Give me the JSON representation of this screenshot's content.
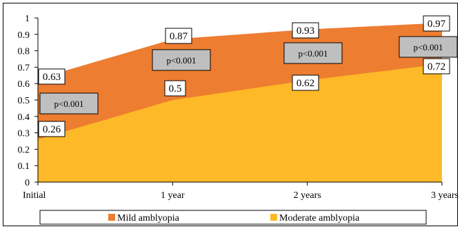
{
  "chart_data": {
    "type": "area",
    "categories": [
      "Initial",
      "1 year",
      "2 years",
      "3 years"
    ],
    "ylim": [
      0,
      1
    ],
    "yticks": [
      "0",
      "0.1",
      "0.2",
      "0.3",
      "0.4",
      "0.5",
      "0.6",
      "0.7",
      "0.8",
      "0.9",
      "1"
    ],
    "grid": false,
    "legend": "bottom",
    "series": [
      {
        "name": "Mild amblyopia",
        "values": [
          0.63,
          0.87,
          0.93,
          0.97
        ],
        "labels": [
          "0.63",
          "0.87",
          "0.93",
          "0.97"
        ],
        "color": "#ED7D31"
      },
      {
        "name": "Moderate amblyopia",
        "values": [
          0.26,
          0.5,
          0.62,
          0.72
        ],
        "labels": [
          "0.26",
          "0.5",
          "0.62",
          "0.72"
        ],
        "color": "#FDB927"
      }
    ],
    "annotations": [
      "p<0.001",
      "p<0.001",
      "p<0.001",
      "p<0.001"
    ]
  }
}
